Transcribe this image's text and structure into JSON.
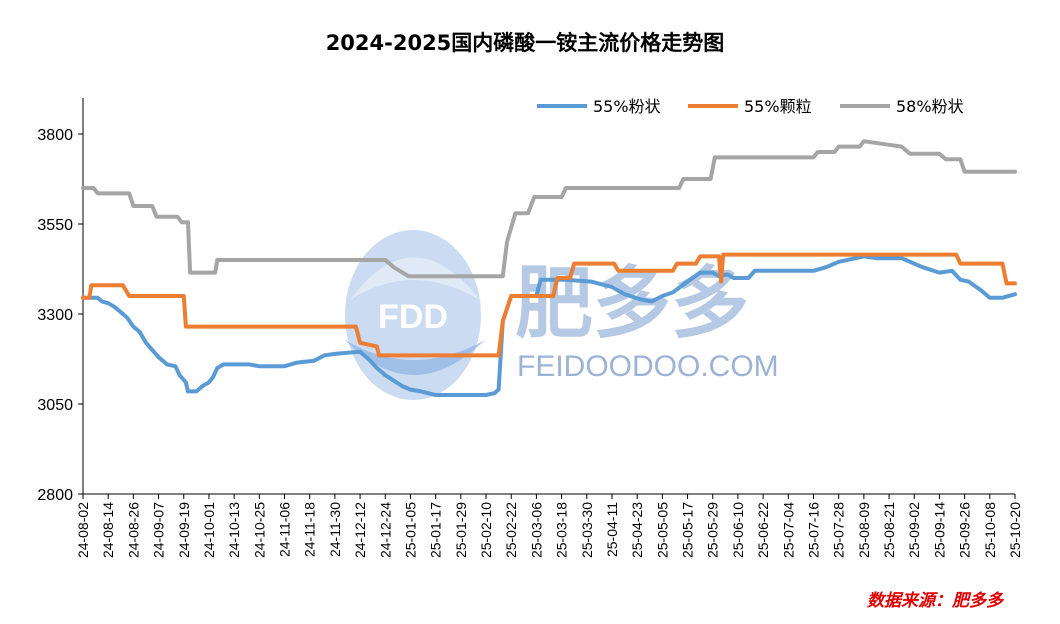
{
  "chart_data": {
    "type": "line",
    "title": "2024-2025国内磷酸一铵主流价格走势图",
    "source": "数据来源：肥多多",
    "ylim": [
      2800,
      3900
    ],
    "yticks": [
      2800,
      3050,
      3300,
      3550,
      3800
    ],
    "grid": false,
    "legend_position": "top-right",
    "xticks": [
      "24-08-02",
      "24-08-14",
      "24-08-26",
      "24-09-07",
      "24-09-19",
      "24-10-01",
      "24-10-13",
      "24-10-25",
      "24-11-06",
      "24-11-18",
      "24-11-30",
      "24-12-12",
      "24-12-24",
      "25-01-05",
      "25-01-17",
      "25-01-29",
      "25-02-10",
      "25-02-22",
      "25-03-06",
      "25-03-18",
      "25-03-30",
      "25-04-11",
      "25-04-23",
      "25-05-05",
      "25-05-17",
      "25-05-29",
      "25-06-10",
      "25-06-22",
      "25-07-04",
      "25-07-16",
      "25-07-28",
      "25-08-09",
      "25-08-21",
      "25-09-02",
      "25-09-14",
      "25-09-26",
      "25-10-08",
      "25-10-20"
    ],
    "series": [
      {
        "name": "55%粉状",
        "color": "#5b9bd5",
        "points": [
          [
            "24-08-02",
            3345
          ],
          [
            "24-08-09",
            3345
          ],
          [
            "24-08-11",
            3335
          ],
          [
            "24-08-14",
            3330
          ],
          [
            "24-08-17",
            3320
          ],
          [
            "24-08-20",
            3305
          ],
          [
            "24-08-23",
            3290
          ],
          [
            "24-08-26",
            3265
          ],
          [
            "24-08-29",
            3250
          ],
          [
            "24-09-01",
            3220
          ],
          [
            "24-09-04",
            3200
          ],
          [
            "24-09-07",
            3180
          ],
          [
            "24-09-11",
            3160
          ],
          [
            "24-09-15",
            3155
          ],
          [
            "24-09-17",
            3130
          ],
          [
            "24-09-20",
            3110
          ],
          [
            "24-09-21",
            3085
          ],
          [
            "24-09-25",
            3085
          ],
          [
            "24-09-28",
            3100
          ],
          [
            "24-10-01",
            3110
          ],
          [
            "24-10-03",
            3125
          ],
          [
            "24-10-05",
            3150
          ],
          [
            "24-10-08",
            3160
          ],
          [
            "24-10-20",
            3160
          ],
          [
            "24-10-25",
            3155
          ],
          [
            "24-11-06",
            3155
          ],
          [
            "24-11-12",
            3165
          ],
          [
            "24-11-20",
            3170
          ],
          [
            "24-11-25",
            3185
          ],
          [
            "24-12-01",
            3190
          ],
          [
            "24-12-12",
            3195
          ],
          [
            "24-12-16",
            3175
          ],
          [
            "24-12-20",
            3150
          ],
          [
            "24-12-24",
            3130
          ],
          [
            "24-12-28",
            3115
          ],
          [
            "25-01-01",
            3100
          ],
          [
            "25-01-05",
            3090
          ],
          [
            "25-01-10",
            3085
          ],
          [
            "25-01-17",
            3075
          ],
          [
            "25-02-10",
            3075
          ],
          [
            "25-02-14",
            3080
          ],
          [
            "25-02-16",
            3090
          ],
          [
            "25-02-18",
            3280
          ],
          [
            "25-02-22",
            3350
          ],
          [
            "25-03-06",
            3350
          ],
          [
            "25-03-08",
            3395
          ],
          [
            "25-03-20",
            3395
          ],
          [
            "25-04-01",
            3390
          ],
          [
            "25-04-11",
            3375
          ],
          [
            "25-04-17",
            3355
          ],
          [
            "25-04-25",
            3340
          ],
          [
            "25-04-30",
            3335
          ],
          [
            "25-05-05",
            3350
          ],
          [
            "25-05-10",
            3360
          ],
          [
            "25-05-17",
            3390
          ],
          [
            "25-05-23",
            3415
          ],
          [
            "25-05-29",
            3415
          ],
          [
            "25-06-01",
            3405
          ],
          [
            "25-06-05",
            3410
          ],
          [
            "25-06-08",
            3400
          ],
          [
            "25-06-15",
            3400
          ],
          [
            "25-06-18",
            3420
          ],
          [
            "25-07-16",
            3420
          ],
          [
            "25-07-22",
            3430
          ],
          [
            "25-07-28",
            3445
          ],
          [
            "25-08-09",
            3460
          ],
          [
            "25-08-15",
            3455
          ],
          [
            "25-08-27",
            3455
          ],
          [
            "25-09-02",
            3440
          ],
          [
            "25-09-06",
            3430
          ],
          [
            "25-09-14",
            3415
          ],
          [
            "25-09-20",
            3420
          ],
          [
            "25-09-24",
            3395
          ],
          [
            "25-09-28",
            3390
          ],
          [
            "25-10-04",
            3365
          ],
          [
            "25-10-08",
            3345
          ],
          [
            "25-10-14",
            3345
          ],
          [
            "25-10-20",
            3355
          ]
        ]
      },
      {
        "name": "55%颗粒",
        "color": "#ed7d31",
        "points": [
          [
            "24-08-02",
            3345
          ],
          [
            "24-08-05",
            3345
          ],
          [
            "24-08-06",
            3380
          ],
          [
            "24-08-21",
            3380
          ],
          [
            "24-08-24",
            3350
          ],
          [
            "24-09-19",
            3350
          ],
          [
            "24-09-20",
            3265
          ],
          [
            "24-12-10",
            3265
          ],
          [
            "24-12-12",
            3220
          ],
          [
            "24-12-20",
            3210
          ],
          [
            "24-12-21",
            3185
          ],
          [
            "25-02-16",
            3185
          ],
          [
            "25-02-18",
            3280
          ],
          [
            "25-02-22",
            3350
          ],
          [
            "25-03-14",
            3350
          ],
          [
            "25-03-16",
            3400
          ],
          [
            "25-03-22",
            3400
          ],
          [
            "25-03-24",
            3440
          ],
          [
            "25-04-12",
            3440
          ],
          [
            "25-04-14",
            3420
          ],
          [
            "25-05-10",
            3420
          ],
          [
            "25-05-12",
            3440
          ],
          [
            "25-05-21",
            3440
          ],
          [
            "25-05-23",
            3460
          ],
          [
            "25-06-01",
            3460
          ],
          [
            "25-06-02",
            3390
          ],
          [
            "25-06-03",
            3465
          ],
          [
            "25-09-22",
            3465
          ],
          [
            "25-09-24",
            3440
          ],
          [
            "25-10-14",
            3440
          ],
          [
            "25-10-16",
            3385
          ],
          [
            "25-10-20",
            3385
          ]
        ]
      },
      {
        "name": "58%粉状",
        "color": "#a5a5a5",
        "points": [
          [
            "24-08-02",
            3650
          ],
          [
            "24-08-07",
            3650
          ],
          [
            "24-08-09",
            3635
          ],
          [
            "24-08-24",
            3635
          ],
          [
            "24-08-26",
            3600
          ],
          [
            "24-09-04",
            3600
          ],
          [
            "24-09-06",
            3570
          ],
          [
            "24-09-16",
            3570
          ],
          [
            "24-09-18",
            3555
          ],
          [
            "24-09-21",
            3555
          ],
          [
            "24-09-22",
            3415
          ],
          [
            "24-10-04",
            3415
          ],
          [
            "24-10-05",
            3450
          ],
          [
            "24-12-24",
            3450
          ],
          [
            "24-12-28",
            3430
          ],
          [
            "25-01-04",
            3405
          ],
          [
            "25-02-18",
            3405
          ],
          [
            "25-02-20",
            3500
          ],
          [
            "25-02-24",
            3580
          ],
          [
            "25-03-02",
            3580
          ],
          [
            "25-03-05",
            3625
          ],
          [
            "25-03-18",
            3625
          ],
          [
            "25-03-20",
            3650
          ],
          [
            "25-05-13",
            3650
          ],
          [
            "25-05-15",
            3675
          ],
          [
            "25-05-28",
            3675
          ],
          [
            "25-05-30",
            3735
          ],
          [
            "25-07-16",
            3735
          ],
          [
            "25-07-18",
            3750
          ],
          [
            "25-07-26",
            3750
          ],
          [
            "25-07-28",
            3765
          ],
          [
            "25-08-07",
            3765
          ],
          [
            "25-08-09",
            3780
          ],
          [
            "25-08-21",
            3770
          ],
          [
            "25-08-27",
            3765
          ],
          [
            "25-08-31",
            3745
          ],
          [
            "25-09-14",
            3745
          ],
          [
            "25-09-17",
            3730
          ],
          [
            "25-09-24",
            3730
          ],
          [
            "25-09-26",
            3695
          ],
          [
            "25-10-20",
            3695
          ]
        ]
      }
    ]
  },
  "watermark": {
    "logo": "FDD",
    "brand": "肥多多",
    "url": "FEIDOODOO.COM"
  }
}
